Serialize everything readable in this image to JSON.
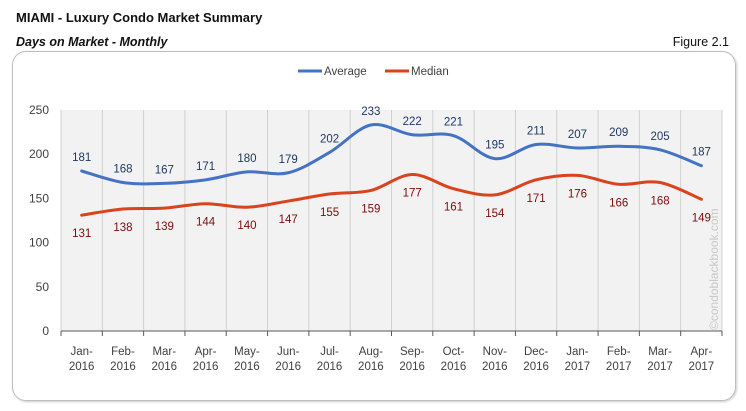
{
  "header": {
    "title": "MIAMI - Luxury Condo Market Summary",
    "subtitle": "Days on Market - Monthly",
    "figure": "Figure 2.1"
  },
  "watermark": "©condoblackbook.com",
  "chart_data": {
    "type": "line",
    "categories": [
      [
        "Jan-",
        "2016"
      ],
      [
        "Feb-",
        "2016"
      ],
      [
        "Mar-",
        "2016"
      ],
      [
        "Apr-",
        "2016"
      ],
      [
        "May-",
        "2016"
      ],
      [
        "Jun-",
        "2016"
      ],
      [
        "Jul-",
        "2016"
      ],
      [
        "Aug-",
        "2016"
      ],
      [
        "Sep-",
        "2016"
      ],
      [
        "Oct-",
        "2016"
      ],
      [
        "Nov-",
        "2016"
      ],
      [
        "Dec-",
        "2016"
      ],
      [
        "Jan-",
        "2017"
      ],
      [
        "Feb-",
        "2017"
      ],
      [
        "Mar-",
        "2017"
      ],
      [
        "Apr-",
        "2017"
      ]
    ],
    "series": [
      {
        "name": "Average",
        "color": "#4472c4",
        "label_color": "#1f3864",
        "values": [
          181,
          168,
          167,
          171,
          180,
          179,
          202,
          233,
          222,
          221,
          195,
          211,
          207,
          209,
          205,
          187
        ]
      },
      {
        "name": "Median",
        "color": "#d9431e",
        "label_color": "#7b0c0c",
        "values": [
          131,
          138,
          139,
          144,
          140,
          147,
          155,
          159,
          177,
          161,
          154,
          171,
          176,
          166,
          168,
          149
        ]
      }
    ],
    "ylim": [
      0,
      250
    ],
    "yticks": [
      0,
      50,
      100,
      150,
      200,
      250
    ],
    "grid": "vertical",
    "legend": "top",
    "smooth": true,
    "data_labels": true
  }
}
